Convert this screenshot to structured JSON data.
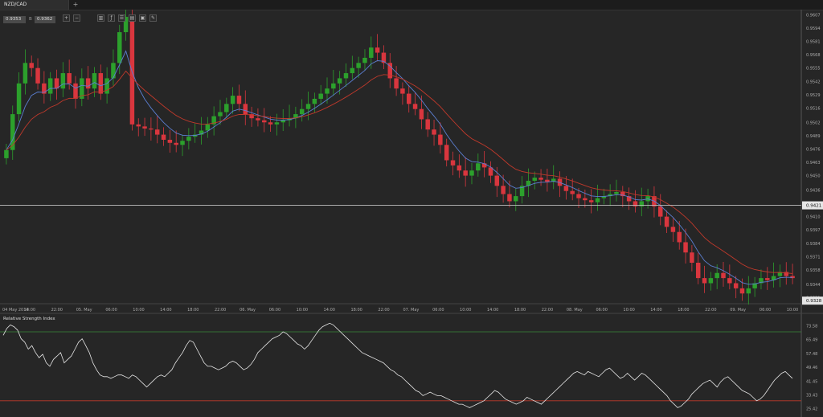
{
  "tab": {
    "label": "NZD/CAD",
    "add": "+"
  },
  "quote": {
    "bid": "0.9353",
    "separator": "B",
    "ask": "0.9362"
  },
  "toolbar": [
    {
      "name": "zoom-in-icon",
      "glyph": "+"
    },
    {
      "name": "zoom-out-icon",
      "glyph": "−"
    },
    {
      "name": "chart-type-icon",
      "glyph": "▥"
    },
    {
      "name": "indicators-icon",
      "glyph": "ƒ"
    },
    {
      "name": "drawing-list-icon",
      "glyph": "☰"
    },
    {
      "name": "templates-icon",
      "glyph": "▤"
    },
    {
      "name": "screenshot-icon",
      "glyph": "▣"
    },
    {
      "name": "settings-icon",
      "glyph": "✎"
    }
  ],
  "colors": {
    "background": "#262626",
    "up": "#2ca02c",
    "down": "#d9363e",
    "ma_fast": "#5b7fd1",
    "ma_slow": "#c0392b",
    "rsi": "#e6e6e6",
    "rsi_upper": "#3a8a3a",
    "rsi_lower": "#c0392b"
  },
  "chart_data": [
    {
      "type": "candlestick",
      "symbol": "NZD/CAD",
      "y_ticks": [
        "0.9607",
        "0.9594",
        "0.9581",
        "0.9568",
        "0.9555",
        "0.9542",
        "0.9529",
        "0.9516",
        "0.9502",
        "0.9489",
        "0.9476",
        "0.9463",
        "0.9450",
        "0.9436",
        "0.9423",
        "0.9410",
        "0.9397",
        "0.9384",
        "0.9371",
        "0.9358",
        "0.9344",
        "0.9331"
      ],
      "ylim": [
        0.9325,
        0.9612
      ],
      "current_price_label": "0.9421",
      "current_price": 0.9421,
      "last_price_label": "0.9328",
      "last_price": 0.9328,
      "x_labels": [
        "04 May 2014",
        "18:00",
        "22:00",
        "05. May",
        "06:00",
        "10:00",
        "14:00",
        "18:00",
        "22:00",
        "06. May",
        "06:00",
        "10:00",
        "14:00",
        "18:00",
        "22:00",
        "07. May",
        "06:00",
        "10:00",
        "14:00",
        "18:00",
        "22:00",
        "08. May",
        "06:00",
        "10:00",
        "14:00",
        "18:00",
        "22:00",
        "09. May",
        "06:00",
        "10:00"
      ],
      "closes": [
        0.9475,
        0.951,
        0.954,
        0.956,
        0.9555,
        0.954,
        0.953,
        0.9545,
        0.9535,
        0.955,
        0.954,
        0.9525,
        0.9545,
        0.9535,
        0.955,
        0.953,
        0.9545,
        0.956,
        0.959,
        0.9605,
        0.95,
        0.9498,
        0.9496,
        0.9495,
        0.949,
        0.9485,
        0.9482,
        0.948,
        0.9484,
        0.9488,
        0.949,
        0.9494,
        0.95,
        0.9508,
        0.9512,
        0.952,
        0.9528,
        0.952,
        0.951,
        0.9506,
        0.9504,
        0.9502,
        0.95,
        0.9502,
        0.9504,
        0.9506,
        0.951,
        0.9515,
        0.952,
        0.9525,
        0.953,
        0.9535,
        0.954,
        0.9545,
        0.955,
        0.9555,
        0.956,
        0.9565,
        0.9575,
        0.957,
        0.956,
        0.9545,
        0.9535,
        0.953,
        0.952,
        0.9515,
        0.9505,
        0.9495,
        0.949,
        0.948,
        0.9465,
        0.946,
        0.9455,
        0.945,
        0.9455,
        0.9462,
        0.9458,
        0.945,
        0.944,
        0.9432,
        0.9425,
        0.943,
        0.944,
        0.9445,
        0.9448,
        0.9446,
        0.9444,
        0.9447,
        0.944,
        0.9435,
        0.9432,
        0.9428,
        0.9426,
        0.9424,
        0.9428,
        0.943,
        0.9432,
        0.9434,
        0.943,
        0.9425,
        0.942,
        0.9425,
        0.943,
        0.942,
        0.941,
        0.94,
        0.9395,
        0.9385,
        0.9375,
        0.9365,
        0.935,
        0.9345,
        0.935,
        0.9355,
        0.935,
        0.9345,
        0.934,
        0.9335,
        0.934,
        0.9345,
        0.935,
        0.9348,
        0.9352,
        0.9356,
        0.9352,
        0.935
      ],
      "moving_averages": [
        "fast",
        "slow"
      ]
    },
    {
      "type": "line",
      "title": "Relative Strength Index",
      "y_ticks": [
        "73.58",
        "65.49",
        "57.48",
        "49.46",
        "41.45",
        "33.43",
        "25.42"
      ],
      "ylim": [
        22,
        77
      ],
      "overbought": 70,
      "oversold": 30,
      "values": [
        68,
        72,
        74,
        73,
        71,
        66,
        64,
        60,
        62,
        58,
        55,
        57,
        52,
        50,
        54,
        56,
        58,
        52,
        54,
        56,
        60,
        64,
        66,
        62,
        58,
        52,
        48,
        45,
        44,
        44,
        43,
        44,
        45,
        45,
        44,
        43,
        45,
        44,
        42,
        40,
        38,
        40,
        42,
        44,
        45,
        44,
        46,
        48,
        52,
        55,
        58,
        62,
        65,
        64,
        60,
        56,
        52,
        50,
        50,
        49,
        48,
        49,
        50,
        52,
        53,
        52,
        50,
        48,
        49,
        51,
        54,
        58,
        60,
        62,
        64,
        66,
        67,
        68,
        70,
        69,
        67,
        65,
        63,
        62,
        60,
        62,
        65,
        68,
        71,
        73,
        74,
        75,
        74,
        72,
        70,
        68,
        66,
        64,
        62,
        60,
        58,
        57,
        56,
        55,
        54,
        53,
        52,
        50,
        48,
        47,
        45,
        44,
        42,
        40,
        38,
        36,
        35,
        33,
        34,
        35,
        34,
        33,
        33,
        32,
        31,
        30,
        29,
        28,
        28,
        27,
        26,
        27,
        28,
        29,
        30,
        32,
        34,
        36,
        35,
        33,
        31,
        30,
        29,
        28,
        29,
        30,
        32,
        31,
        30,
        29,
        28,
        30,
        32,
        34,
        36,
        38,
        40,
        42,
        44,
        46,
        47,
        46,
        45,
        47,
        46,
        45,
        44,
        46,
        48,
        49,
        47,
        45,
        43,
        44,
        46,
        44,
        42,
        44,
        46,
        45,
        43,
        41,
        39,
        37,
        35,
        33,
        30,
        28,
        26,
        27,
        29,
        31,
        34,
        36,
        38,
        40,
        41,
        42,
        40,
        38,
        41,
        43,
        44,
        42,
        40,
        38,
        36,
        35,
        34,
        32,
        30,
        31,
        33,
        36,
        39,
        42,
        44,
        46,
        47,
        45,
        43
      ]
    }
  ]
}
